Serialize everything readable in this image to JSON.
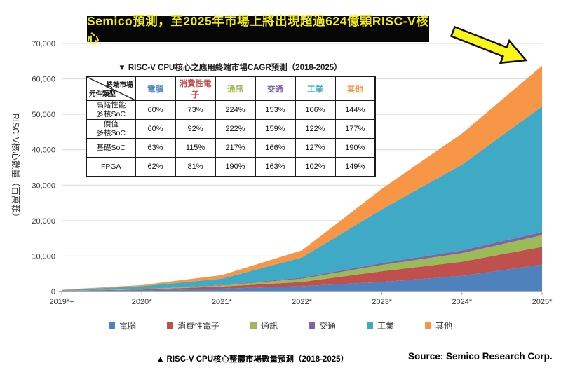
{
  "banner": {
    "text": "Semico預測，至2025年市場上將出現超過624億顆RISC-V核心",
    "bg": "#060606",
    "color": "#F2EC1A"
  },
  "arrow": {
    "fill": "#F9F51F",
    "stroke": "#101010"
  },
  "table": {
    "title": "▼ RISC-V CPU核心之應用終端市場CAGR預測（2018-2025）",
    "corner": {
      "top_right": "終端市場",
      "bottom_left": "元件類型"
    },
    "columns": [
      {
        "id": "computer",
        "label": "電腦",
        "color": "#4F81BD"
      },
      {
        "id": "consumer-electronics",
        "label": "消費性電子",
        "color": "#C0504D"
      },
      {
        "id": "communications",
        "label": "通訊",
        "color": "#9BBB59"
      },
      {
        "id": "transportation",
        "label": "交通",
        "color": "#8064A2"
      },
      {
        "id": "industrial",
        "label": "工業",
        "color": "#4BACC6"
      },
      {
        "id": "other",
        "label": "其他",
        "color": "#F79646"
      }
    ],
    "rows": [
      {
        "label": "高階性能\n多核SoC",
        "values": [
          "60%",
          "73%",
          "224%",
          "153%",
          "106%",
          "144%"
        ]
      },
      {
        "label": "價值\n多核SoC",
        "values": [
          "60%",
          "92%",
          "222%",
          "159%",
          "122%",
          "177%"
        ]
      },
      {
        "label": "基礎SoC",
        "values": [
          "63%",
          "115%",
          "217%",
          "166%",
          "127%",
          "190%"
        ]
      },
      {
        "label": "FPGA",
        "values": [
          "62%",
          "81%",
          "190%",
          "163%",
          "102%",
          "149%"
        ]
      }
    ]
  },
  "chart_data": {
    "type": "area",
    "stacked": true,
    "x_labels": [
      "2019*+",
      "2020*",
      "2021*",
      "2022*",
      "2023*",
      "2024*",
      "2025*"
    ],
    "ylabel": "RISC-V核心數量（百萬顆）",
    "ylim": [
      0,
      70000
    ],
    "yticks": [
      0,
      10000,
      20000,
      30000,
      40000,
      50000,
      60000,
      70000
    ],
    "ytick_labels": [
      "0",
      "10,000",
      "20,000",
      "30,000",
      "40,000",
      "50,000",
      "60,000",
      "70,000"
    ],
    "grid": "horizontal",
    "legend_position": "bottom",
    "series": [
      {
        "id": "computer",
        "name": "電腦",
        "color": "#4F81BD",
        "values": [
          80,
          300,
          800,
          1500,
          2700,
          4400,
          7600
        ]
      },
      {
        "id": "consumer-electronics",
        "name": "消費性電子",
        "color": "#C0504D",
        "values": [
          70,
          250,
          600,
          1200,
          3000,
          4000,
          5000
        ]
      },
      {
        "id": "communications",
        "name": "通訊",
        "color": "#9BBB59",
        "values": [
          30,
          100,
          300,
          900,
          1800,
          2400,
          3300
        ]
      },
      {
        "id": "transportation",
        "name": "交通",
        "color": "#8064A2",
        "values": [
          20,
          50,
          120,
          300,
          500,
          800,
          900
        ]
      },
      {
        "id": "industrial",
        "name": "工業",
        "color": "#3FA9C6",
        "values": [
          200,
          800,
          1800,
          5700,
          15200,
          24200,
          35400
        ]
      },
      {
        "id": "other",
        "name": "其他",
        "color": "#F79646",
        "values": [
          100,
          300,
          1000,
          2000,
          5800,
          8800,
          11500
        ]
      }
    ]
  },
  "captions": {
    "chart_caption": "▲ RISC-V CPU核心整體市場數量預測（2018-2025）",
    "source": "Source: Semico Research Corp."
  }
}
